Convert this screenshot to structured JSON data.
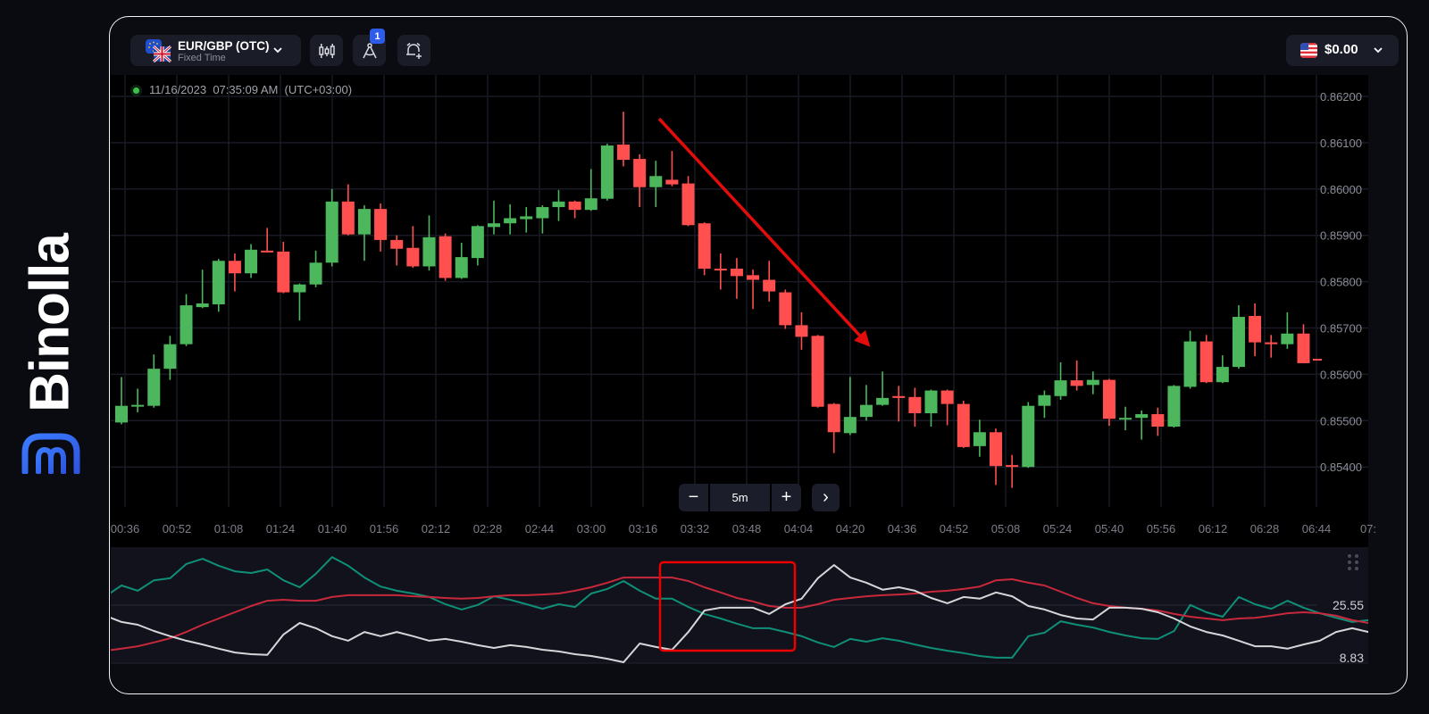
{
  "logo": {
    "text": "Binolla",
    "color": "#2f6cf5"
  },
  "header": {
    "asset": {
      "title": "EUR/GBP (OTC)",
      "subtitle": "Fixed Time",
      "flags": [
        "eu-flag",
        "uk-flag"
      ]
    },
    "tool_buttons": [
      {
        "icon": "candlestick-chart-icon"
      },
      {
        "icon": "compass-drawing-icon",
        "badge": "1"
      },
      {
        "icon": "alarm-plus-icon"
      }
    ],
    "balance": {
      "amount": "$0.00",
      "flag": "us-flag"
    }
  },
  "timestamp": "11/16/2023  07:35:09 AM  (UTC+03:00)",
  "zoom_controls": {
    "minus": "−",
    "interval": "5m",
    "plus": "+",
    "next": "›"
  },
  "colors": {
    "bull": "#4cb75c",
    "bear": "#ff4f4f",
    "annotation": "#e30c0c",
    "indicator_teal": "#0f8f78",
    "indicator_red": "#c8283c",
    "indicator_white": "#d6d6da"
  },
  "chart_data": [
    {
      "type": "candlestick",
      "title": "",
      "interval": "5m",
      "ylim": [
        0.854,
        0.862
      ],
      "y_ticks": [
        "0.86200",
        "0.86100",
        "0.86000",
        "0.85900",
        "0.85800",
        "0.85700",
        "0.85600",
        "0.85500",
        "0.85400"
      ],
      "x_ticks": [
        "00:36",
        "00:52",
        "01:08",
        "01:24",
        "01:40",
        "01:56",
        "02:12",
        "02:28",
        "02:44",
        "03:00",
        "03:16",
        "03:32",
        "03:48",
        "04:04",
        "04:20",
        "04:36",
        "04:52",
        "05:08",
        "05:24",
        "05:40",
        "05:56",
        "06:12",
        "06:28",
        "06:44",
        "07:"
      ],
      "grid": true,
      "ohlc": [
        [
          0.85496,
          0.85594,
          0.85492,
          0.85532
        ],
        [
          0.85532,
          0.85569,
          0.85518,
          0.85534
        ],
        [
          0.85532,
          0.85643,
          0.85528,
          0.85612
        ],
        [
          0.85612,
          0.85683,
          0.85588,
          0.85665
        ],
        [
          0.85665,
          0.85773,
          0.85661,
          0.85749
        ],
        [
          0.85745,
          0.85826,
          0.85743,
          0.85753
        ],
        [
          0.85751,
          0.85849,
          0.85735,
          0.85845
        ],
        [
          0.85845,
          0.85861,
          0.85779,
          0.85818
        ],
        [
          0.85818,
          0.85881,
          0.85808,
          0.85869
        ],
        [
          0.85867,
          0.85916,
          0.85863,
          0.85865
        ],
        [
          0.85865,
          0.85886,
          0.85775,
          0.85777
        ],
        [
          0.85777,
          0.85796,
          0.85716,
          0.85794
        ],
        [
          0.85794,
          0.85867,
          0.85788,
          0.85841
        ],
        [
          0.85841,
          0.86,
          0.85833,
          0.85973
        ],
        [
          0.85973,
          0.8601,
          0.859,
          0.85902
        ],
        [
          0.85902,
          0.85965,
          0.85845,
          0.85957
        ],
        [
          0.85957,
          0.85969,
          0.85865,
          0.8589
        ],
        [
          0.8589,
          0.859,
          0.85835,
          0.85871
        ],
        [
          0.85873,
          0.8592,
          0.8583,
          0.85833
        ],
        [
          0.85833,
          0.85943,
          0.85824,
          0.85896
        ],
        [
          0.85898,
          0.85904,
          0.85802,
          0.85808
        ],
        [
          0.85808,
          0.85884,
          0.85806,
          0.85853
        ],
        [
          0.85851,
          0.85922,
          0.85835,
          0.8592
        ],
        [
          0.85918,
          0.85975,
          0.85902,
          0.85926
        ],
        [
          0.85926,
          0.85967,
          0.85902,
          0.85937
        ],
        [
          0.85935,
          0.85961,
          0.85906,
          0.85941
        ],
        [
          0.85937,
          0.85965,
          0.85904,
          0.85961
        ],
        [
          0.85961,
          0.85998,
          0.85931,
          0.85973
        ],
        [
          0.85973,
          0.85975,
          0.85937,
          0.85955
        ],
        [
          0.85955,
          0.86043,
          0.85953,
          0.8598
        ],
        [
          0.85979,
          0.86098,
          0.85975,
          0.86094
        ],
        [
          0.86096,
          0.86167,
          0.86049,
          0.86063
        ],
        [
          0.86065,
          0.86075,
          0.85961,
          0.86004
        ],
        [
          0.86004,
          0.86061,
          0.85961,
          0.86028
        ],
        [
          0.8602,
          0.86082,
          0.86006,
          0.8601
        ],
        [
          0.86012,
          0.86028,
          0.8592,
          0.85922
        ],
        [
          0.85926,
          0.85928,
          0.85814,
          0.85828
        ],
        [
          0.85828,
          0.85861,
          0.85783,
          0.85826
        ],
        [
          0.85828,
          0.85851,
          0.85763,
          0.85812
        ],
        [
          0.85814,
          0.85826,
          0.85741,
          0.85804
        ],
        [
          0.85804,
          0.85845,
          0.85757,
          0.85779
        ],
        [
          0.85777,
          0.85783,
          0.85698,
          0.85706
        ],
        [
          0.85706,
          0.85734,
          0.85653,
          0.85681
        ],
        [
          0.85683,
          0.85685,
          0.85528,
          0.8553
        ],
        [
          0.85536,
          0.85538,
          0.8543,
          0.85475
        ],
        [
          0.85473,
          0.85594,
          0.85469,
          0.85508
        ],
        [
          0.85508,
          0.85577,
          0.855,
          0.85534
        ],
        [
          0.85534,
          0.85606,
          0.85532,
          0.85549
        ],
        [
          0.85553,
          0.85575,
          0.85498,
          0.85549
        ],
        [
          0.85551,
          0.85571,
          0.85487,
          0.85516
        ],
        [
          0.85516,
          0.85567,
          0.85487,
          0.85565
        ],
        [
          0.85565,
          0.85567,
          0.8549,
          0.85536
        ],
        [
          0.85536,
          0.85543,
          0.85441,
          0.85443
        ],
        [
          0.85445,
          0.85502,
          0.85422,
          0.85475
        ],
        [
          0.85475,
          0.85483,
          0.85361,
          0.85402
        ],
        [
          0.85404,
          0.85426,
          0.85355,
          0.85402
        ],
        [
          0.854,
          0.8554,
          0.85398,
          0.85532
        ],
        [
          0.85532,
          0.85565,
          0.85506,
          0.85555
        ],
        [
          0.85553,
          0.85626,
          0.85545,
          0.85587
        ],
        [
          0.85587,
          0.8563,
          0.85565,
          0.85575
        ],
        [
          0.85577,
          0.85606,
          0.85557,
          0.85588
        ],
        [
          0.85588,
          0.8559,
          0.85489,
          0.85504
        ],
        [
          0.85504,
          0.8553,
          0.85479,
          0.85506
        ],
        [
          0.85506,
          0.85522,
          0.85459,
          0.85514
        ],
        [
          0.85514,
          0.85528,
          0.85467,
          0.85487
        ],
        [
          0.85487,
          0.85577,
          0.85485,
          0.85575
        ],
        [
          0.85573,
          0.85694,
          0.85569,
          0.85671
        ],
        [
          0.85671,
          0.85685,
          0.85581,
          0.85583
        ],
        [
          0.85583,
          0.85641,
          0.85581,
          0.85616
        ],
        [
          0.85616,
          0.85749,
          0.85612,
          0.85724
        ],
        [
          0.85726,
          0.85753,
          0.85639,
          0.85669
        ],
        [
          0.85669,
          0.85685,
          0.85636,
          0.85665
        ],
        [
          0.85665,
          0.85734,
          0.85655,
          0.85688
        ],
        [
          0.85688,
          0.85708,
          0.85624,
          0.85624
        ]
      ]
    },
    {
      "type": "line",
      "title": "",
      "y_labels": [
        "25.55",
        "8.83"
      ],
      "series": [
        {
          "color": "#0f8f78",
          "values": [
            28.1,
            31.2,
            29.7,
            32.7,
            33.3,
            37.4,
            38.9,
            36.9,
            35.3,
            34.8,
            35.8,
            32.7,
            30.7,
            34.6,
            39.4,
            36.9,
            33.5,
            30.9,
            29.7,
            28.9,
            27.9,
            25.8,
            24.3,
            25.6,
            28.1,
            27.1,
            25.8,
            24.5,
            25.8,
            25.0,
            28.9,
            30.2,
            32.5,
            29.7,
            27.4,
            27.4,
            25.0,
            23.0,
            21.7,
            20.2,
            18.9,
            18.9,
            17.8,
            16.6,
            14.8,
            13.5,
            15.8,
            15.0,
            16.0,
            15.3,
            14.2,
            13.2,
            12.4,
            11.7,
            10.9,
            10.4,
            10.4,
            16.6,
            17.6,
            20.9,
            19.9,
            19.1,
            17.8,
            16.8,
            16.0,
            15.8,
            18.1,
            25.6,
            23.5,
            22.2,
            27.9,
            25.8,
            24.5,
            26.8,
            24.8,
            23.2,
            21.9,
            20.7,
            21.2
          ]
        },
        {
          "color": "#c8283c",
          "values": [
            12.4,
            13.0,
            13.7,
            14.8,
            16.0,
            17.8,
            19.9,
            21.7,
            23.5,
            25.3,
            26.8,
            27.1,
            26.8,
            26.8,
            27.9,
            28.4,
            28.4,
            28.4,
            28.4,
            28.1,
            27.9,
            27.6,
            27.4,
            27.6,
            28.1,
            28.4,
            28.4,
            28.6,
            28.9,
            29.7,
            30.7,
            32.0,
            33.5,
            33.5,
            33.5,
            33.5,
            32.5,
            30.7,
            29.2,
            27.6,
            26.6,
            25.3,
            24.8,
            24.8,
            25.8,
            27.1,
            27.6,
            28.1,
            28.4,
            28.6,
            28.9,
            29.4,
            29.7,
            30.2,
            30.9,
            32.7,
            33.0,
            32.0,
            31.2,
            29.4,
            27.6,
            26.1,
            25.3,
            24.8,
            24.5,
            24.0,
            23.0,
            22.2,
            21.7,
            21.2,
            21.7,
            21.9,
            22.5,
            23.2,
            23.5,
            23.2,
            22.5,
            21.2,
            20.4
          ]
        },
        {
          "color": "#d6d6da",
          "values": [
            22.5,
            20.7,
            19.9,
            18.1,
            16.6,
            15.3,
            14.2,
            13.0,
            11.9,
            11.4,
            11.2,
            17.1,
            20.4,
            18.9,
            16.6,
            15.3,
            17.8,
            16.6,
            17.8,
            16.6,
            15.3,
            15.8,
            15.0,
            14.0,
            13.2,
            14.0,
            13.5,
            12.7,
            12.2,
            11.4,
            10.9,
            10.1,
            9.1,
            14.5,
            13.5,
            12.7,
            17.8,
            24.0,
            24.8,
            24.8,
            24.8,
            23.0,
            25.8,
            27.4,
            33.3,
            37.1,
            33.5,
            32.0,
            30.0,
            30.7,
            29.7,
            27.6,
            26.1,
            27.9,
            27.4,
            29.2,
            28.1,
            25.3,
            24.3,
            22.7,
            21.7,
            21.4,
            24.8,
            24.8,
            24.5,
            23.5,
            21.7,
            19.4,
            17.8,
            16.8,
            15.3,
            13.7,
            13.7,
            13.0,
            14.2,
            15.3,
            17.8,
            18.9,
            17.8
          ]
        }
      ]
    }
  ]
}
